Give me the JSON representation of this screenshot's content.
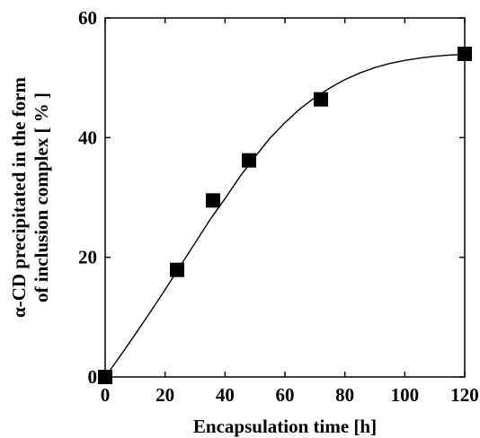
{
  "chart_data": {
    "type": "scatter",
    "xlabel": "Encapsulation time [h]",
    "ylabel_lines": [
      "α-CD precipitated in the form",
      "of inclusion complex [ % ]"
    ],
    "xlim": [
      0,
      120
    ],
    "ylim": [
      0,
      60
    ],
    "x_ticks": [
      0,
      20,
      40,
      60,
      80,
      100,
      120
    ],
    "y_ticks": [
      0,
      20,
      40,
      60
    ],
    "grid": false,
    "legend": "none",
    "series": [
      {
        "x": [
          0,
          24,
          36,
          48,
          72,
          120
        ],
        "y": [
          0,
          17.9,
          29.5,
          36.2,
          46.4,
          54.0
        ],
        "marker": "square",
        "color": "#000000"
      }
    ],
    "fit_line": {
      "x": [
        0,
        5,
        10,
        15,
        20,
        25,
        30,
        35,
        40,
        45,
        50,
        55,
        60,
        65,
        70,
        75,
        80,
        85,
        90,
        95,
        100,
        105,
        110,
        115,
        120
      ],
      "y": [
        0,
        3.5,
        7.1,
        10.8,
        14.6,
        18.5,
        22.4,
        26.3,
        29.8,
        33.5,
        36.8,
        39.9,
        42.5,
        44.8,
        46.7,
        48.3,
        49.7,
        50.8,
        51.7,
        52.4,
        52.9,
        53.3,
        53.6,
        53.8,
        53.9
      ],
      "color": "#000000"
    }
  }
}
